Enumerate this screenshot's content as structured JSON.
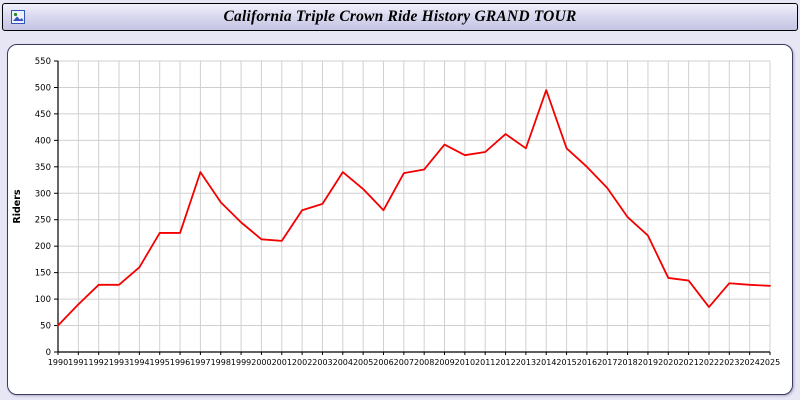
{
  "header": {
    "title": "California Triple Crown Ride History GRAND TOUR"
  },
  "chart_data": {
    "type": "line",
    "title": "California Triple Crown Ride History GRAND TOUR",
    "xlabel": "",
    "ylabel": "Riders",
    "ylim": [
      0,
      550
    ],
    "yticks": [
      0,
      50,
      100,
      150,
      200,
      250,
      300,
      350,
      400,
      450,
      500,
      550
    ],
    "x": [
      1990,
      1991,
      1992,
      1993,
      1994,
      1995,
      1996,
      1997,
      1998,
      1999,
      2000,
      2001,
      2002,
      2003,
      2004,
      2005,
      2006,
      2007,
      2008,
      2009,
      2010,
      2011,
      2012,
      2013,
      2014,
      2015,
      2016,
      2017,
      2018,
      2019,
      2020,
      2021,
      2022,
      2023,
      2024,
      2025
    ],
    "series": [
      {
        "name": "Riders",
        "values": [
          50,
          90,
          127,
          127,
          160,
          225,
          225,
          340,
          283,
          245,
          213,
          210,
          268,
          280,
          340,
          308,
          268,
          338,
          345,
          392,
          372,
          378,
          412,
          385,
          495,
          385,
          350,
          310,
          255,
          220,
          140,
          135,
          85,
          130,
          127,
          125
        ]
      }
    ],
    "grid": true,
    "legend": "none",
    "line_color": "#f40000"
  },
  "colors": {
    "page_bg": "#e6e6f5",
    "panel_bg": "#ffffff",
    "panel_border": "#3b3b66",
    "grid": "#d0d0d0",
    "axis": "#000000",
    "line": "#f40000"
  }
}
